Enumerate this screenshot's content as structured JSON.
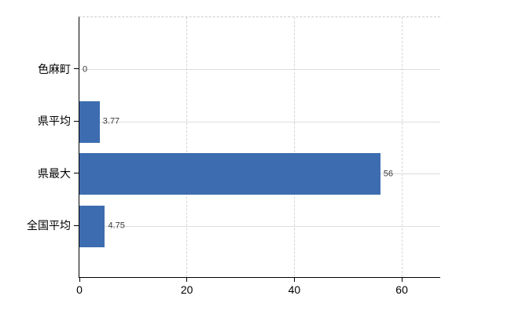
{
  "chart_data": {
    "type": "bar",
    "orientation": "horizontal",
    "title": "",
    "categories": [
      "色麻町",
      "県平均",
      "県最大",
      "全国平均"
    ],
    "values": [
      0,
      3.77,
      56,
      4.75
    ],
    "value_labels": [
      "0",
      "3.77",
      "56",
      "4.75"
    ],
    "xticks": [
      "0",
      "20",
      "40",
      "60"
    ],
    "xtick_values": [
      0,
      20,
      40,
      60
    ],
    "xlim": [
      0,
      67.3
    ],
    "grid": {
      "horizontal": "solid",
      "vertical": "dashed",
      "top_border": "dashed"
    },
    "legend": null
  },
  "colors": {
    "bar": "#3d6db0",
    "h_gridline": "#dae0d6",
    "v_gridline": "#d7d4d9",
    "top_border": "#cfc9cd",
    "axis": "#000000",
    "value_label": "#3a3a3a",
    "tick_label": "#000000"
  }
}
